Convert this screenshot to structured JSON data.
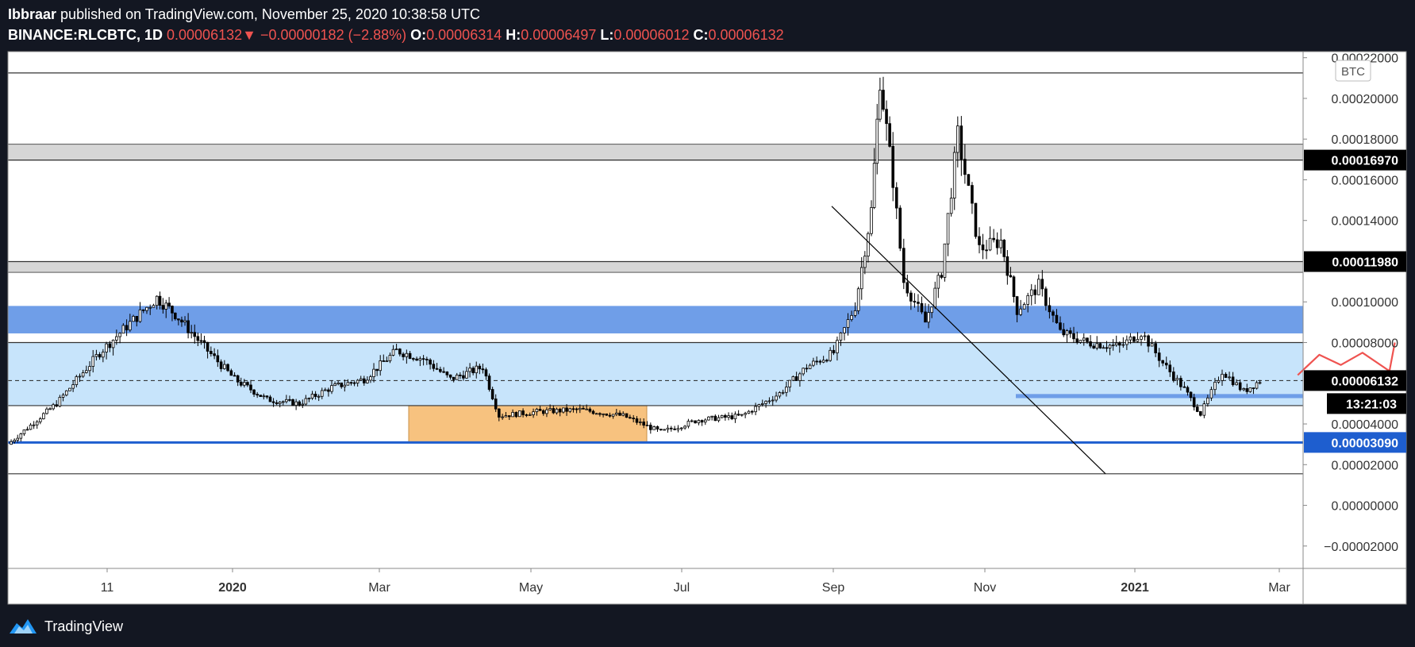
{
  "header": {
    "author": "Ibbraar",
    "published_text": "published on TradingView.com, November 25, 2020 10:38:58 UTC",
    "symbol": "BINANCE:RLCBTC, 1D",
    "last": "0.00006132",
    "change_arrow": "▼",
    "change": "−0.00000182 (−2.88%)",
    "o_label": "O:",
    "o_value": "0.00006314",
    "h_label": "H:",
    "h_value": "0.00006497",
    "l_label": "L:",
    "l_value": "0.00006012",
    "c_label": "C:",
    "c_value": "0.00006132"
  },
  "footer": {
    "brand": "TradingView",
    "icon": "tradingview-logo-icon"
  },
  "colors": {
    "background": "#131722",
    "plot": "#ffffff",
    "gray_zone": "#d6d6d6",
    "blue_zone": "#6f9ee8",
    "light_blue_zone": "#c7e4fb",
    "orange_zone": "#f7c27f",
    "support_line": "#1e5ecf",
    "drawing": "#ef5350"
  },
  "chart_data": {
    "type": "candlestick",
    "currency_label": "BTC",
    "ylim": [
      -3.1e-05,
      0.000223
    ],
    "x_tick_labels": [
      "11",
      "2020",
      "Mar",
      "May",
      "Jul",
      "Sep",
      "Nov",
      "2021",
      "Mar"
    ],
    "y_ticks": [
      {
        "value": 0.00022,
        "label": "0.00022000"
      },
      {
        "value": 0.0002,
        "label": "0.00020000"
      },
      {
        "value": 0.00018,
        "label": "0.00018000"
      },
      {
        "value": 0.00016,
        "label": "0.00016000"
      },
      {
        "value": 0.00014,
        "label": "0.00014000"
      },
      {
        "value": 0.0001,
        "label": "0.00010000"
      },
      {
        "value": 8e-05,
        "label": "0.00008000"
      },
      {
        "value": 4e-05,
        "label": "0.00004000"
      },
      {
        "value": 2e-05,
        "label": "0.00002000"
      },
      {
        "value": 0.0,
        "label": "0.00000000"
      },
      {
        "value": -2e-05,
        "label": "−0.00002000"
      }
    ],
    "price_tags": [
      {
        "value": 0.0001697,
        "label": "0.00016970",
        "style": "black"
      },
      {
        "value": 0.0001198,
        "label": "0.00011980",
        "style": "black"
      },
      {
        "value": 6.132e-05,
        "label": "0.00006132",
        "style": "black"
      },
      {
        "value": 3.09e-05,
        "label": "0.00003090",
        "style": "blue"
      }
    ],
    "countdown": "13:21:03",
    "horizontal_levels": [
      0.0002125,
      0.0001697,
      0.0001198,
      8e-05,
      4.9e-05,
      3.09e-05,
      1.55e-05
    ],
    "zones": [
      {
        "name": "gray-top",
        "from": 0.0001697,
        "to": 0.0001775
      },
      {
        "name": "gray-mid",
        "from": 0.0001145,
        "to": 0.0001198
      },
      {
        "name": "blue-resistance",
        "from": 8.45e-05,
        "to": 9.8e-05
      },
      {
        "name": "light-blue-range",
        "from": 4.9e-05,
        "to": 8e-05
      },
      {
        "name": "orange-accumulation",
        "from": 3.09e-05,
        "to": 4.9e-05
      },
      {
        "name": "small-blue-support",
        "from": 5.27e-05,
        "to": 5.47e-05
      }
    ],
    "trendline": {
      "from_price": 0.000147,
      "to_price": 1.55e-05,
      "label": "downtrend"
    },
    "current_price": 6.132e-05,
    "price_path": [
      [
        0.0,
        3e-05
      ],
      [
        0.045,
        5e-05
      ],
      [
        0.085,
        7.5e-05
      ],
      [
        0.11,
        8.8e-05
      ],
      [
        0.138,
        0.000102
      ],
      [
        0.155,
        9.4e-05
      ],
      [
        0.185,
        7.6e-05
      ],
      [
        0.21,
        6.2e-05
      ],
      [
        0.24,
        5.2e-05
      ],
      [
        0.27,
        5e-05
      ],
      [
        0.3,
        5.8e-05
      ],
      [
        0.33,
        6.2e-05
      ],
      [
        0.36,
        7.6e-05
      ],
      [
        0.385,
        7.2e-05
      ],
      [
        0.41,
        6.2e-05
      ],
      [
        0.44,
        6.8e-05
      ],
      [
        0.455,
        4.4e-05
      ],
      [
        0.49,
        4.6e-05
      ],
      [
        0.53,
        4.7e-05
      ],
      [
        0.57,
        4.4e-05
      ],
      [
        0.605,
        3.6e-05
      ],
      [
        0.64,
        4.2e-05
      ],
      [
        0.68,
        4.4e-05
      ],
      [
        0.715,
        5.5e-05
      ],
      [
        0.74,
        6.8e-05
      ],
      [
        0.765,
        7.5e-05
      ],
      [
        0.785,
        9.8e-05
      ],
      [
        0.8,
        0.000145
      ],
      [
        0.808,
        0.00021
      ],
      [
        0.82,
        0.00016
      ],
      [
        0.83,
        0.00011
      ],
      [
        0.85,
        9e-05
      ],
      [
        0.865,
        0.000115
      ],
      [
        0.88,
        0.000182
      ],
      [
        0.9,
        0.000126
      ],
      [
        0.92,
        0.00013
      ],
      [
        0.935,
        9.6e-05
      ],
      [
        0.955,
        0.000108
      ],
      [
        0.975,
        8.5e-05
      ],
      [
        1.0,
        8e-05
      ],
      [
        1.03,
        7.8e-05
      ],
      [
        1.05,
        8.5e-05
      ],
      [
        1.07,
        7e-05
      ],
      [
        1.09,
        5.7e-05
      ],
      [
        1.105,
        4.5e-05
      ],
      [
        1.125,
        6.6e-05
      ],
      [
        1.145,
        5.6e-05
      ],
      [
        1.16,
        6.13e-05
      ]
    ],
    "projection_drawing": [
      [
        [
          1.195,
          6.4e-05
        ],
        [
          1.215,
          7.4e-05
        ],
        [
          1.235,
          6.9e-05
        ],
        [
          1.255,
          7.5e-05
        ],
        [
          1.28,
          6.6e-05
        ],
        [
          1.285,
          8e-05
        ]
      ],
      [
        [
          1.335,
          8.6e-05
        ],
        [
          1.35,
          9.2e-05
        ],
        [
          1.365,
          8.5e-05
        ],
        [
          1.38,
          9.1e-05
        ],
        [
          1.395,
          8.6e-05
        ],
        [
          1.41,
          9.7e-05
        ],
        [
          1.415,
          0.000116
        ]
      ]
    ]
  }
}
